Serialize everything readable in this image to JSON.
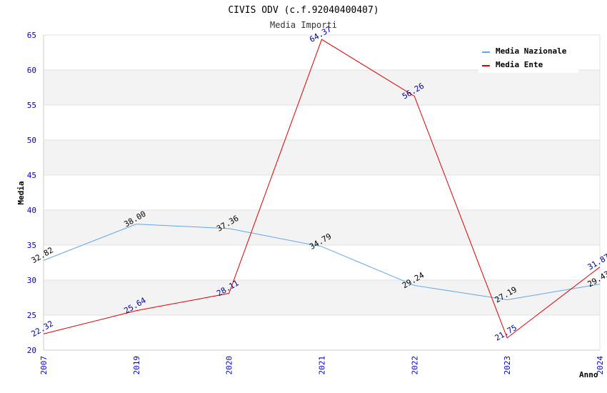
{
  "chart_data": {
    "type": "line",
    "title": "CIVIS ODV (c.f.92040400407)",
    "subtitle": "Media Importi",
    "xlabel": "Anno",
    "ylabel": "Media",
    "categories": [
      "2007",
      "2019",
      "2020",
      "2021",
      "2022",
      "2023",
      "2024"
    ],
    "ylim": [
      20,
      65
    ],
    "yticks": [
      20,
      25,
      30,
      35,
      40,
      45,
      50,
      55,
      60,
      65
    ],
    "grid": true,
    "legend_position": "top-right",
    "series": [
      {
        "name": "Media Nazionale",
        "color": "#5fa8e8",
        "label_color": "#000000",
        "values": [
          32.82,
          38.0,
          37.36,
          34.79,
          29.24,
          27.19,
          29.43
        ],
        "labels": [
          "32.82",
          "38.00",
          "37.36",
          "34.79",
          "29.24",
          "27.19",
          "29.43"
        ]
      },
      {
        "name": "Media Ente",
        "color": "#dd0000",
        "label_color": "#000099",
        "values": [
          22.32,
          25.64,
          28.11,
          64.37,
          56.26,
          21.75,
          31.87
        ],
        "labels": [
          "22.32",
          "25.64",
          "28.11",
          "64.37",
          "56.26",
          "21.75",
          "31.87"
        ]
      }
    ]
  }
}
